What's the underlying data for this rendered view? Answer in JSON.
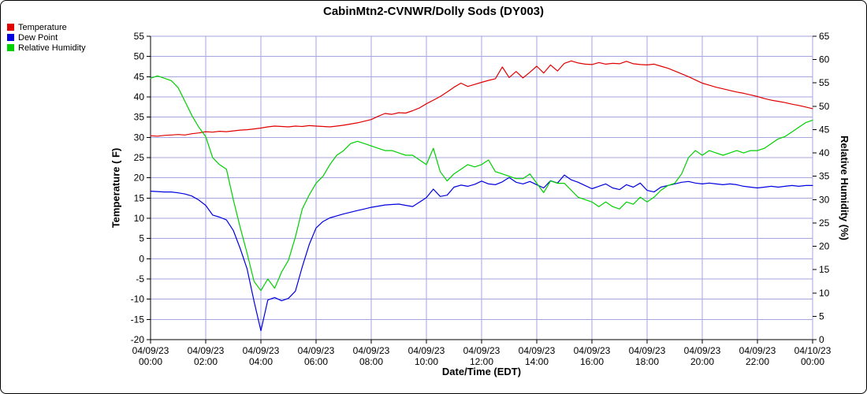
{
  "chart_data": {
    "type": "line",
    "title": "CabinMtn2-CVNWR/Dolly Sods (DY003)",
    "xlabel": "Date/Time (EDT)",
    "grid": true,
    "grid_color": "#a5a5e0",
    "legend_position": "top-left",
    "x_min_hour": 0,
    "x_max_hour": 24,
    "x_step_hours": 0.25,
    "x_ticks": [
      {
        "hour": 0,
        "date": "04/09/23",
        "time": "00:00"
      },
      {
        "hour": 2,
        "date": "04/09/23",
        "time": "02:00"
      },
      {
        "hour": 4,
        "date": "04/09/23",
        "time": "04:00"
      },
      {
        "hour": 6,
        "date": "04/09/23",
        "time": "06:00"
      },
      {
        "hour": 8,
        "date": "04/09/23",
        "time": "08:00"
      },
      {
        "hour": 10,
        "date": "04/09/23",
        "time": "10:00"
      },
      {
        "hour": 12,
        "date": "04/09/23",
        "time": "12:00"
      },
      {
        "hour": 14,
        "date": "04/09/23",
        "time": "14:00"
      },
      {
        "hour": 16,
        "date": "04/09/23",
        "time": "16:00"
      },
      {
        "hour": 18,
        "date": "04/09/23",
        "time": "18:00"
      },
      {
        "hour": 20,
        "date": "04/09/23",
        "time": "20:00"
      },
      {
        "hour": 22,
        "date": "04/09/23",
        "time": "22:00"
      },
      {
        "hour": 24,
        "date": "04/10/23",
        "time": "00:00"
      }
    ],
    "left_axis": {
      "label": "Temperature ( F)",
      "min": -20,
      "max": 55,
      "ticks": [
        55,
        50,
        45,
        40,
        35,
        30,
        25,
        20,
        15,
        10,
        5,
        0,
        -5,
        -10,
        -15,
        -20
      ]
    },
    "right_axis": {
      "label": "Relative Humidity (%)",
      "min": 0,
      "max": 65,
      "ticks": [
        65,
        60,
        55,
        50,
        45,
        40,
        35,
        30,
        25,
        20,
        15,
        10,
        5,
        0
      ]
    },
    "series": [
      {
        "name": "Temperature",
        "axis": "left",
        "color": "#e00000",
        "values": [
          30.4,
          30.3,
          30.5,
          30.6,
          30.7,
          30.6,
          30.9,
          31.1,
          31.4,
          31.3,
          31.5,
          31.4,
          31.6,
          31.8,
          31.9,
          32.1,
          32.3,
          32.6,
          32.8,
          32.7,
          32.6,
          32.8,
          32.7,
          32.9,
          32.8,
          32.7,
          32.6,
          32.8,
          33.0,
          33.3,
          33.6,
          34.0,
          34.4,
          35.2,
          35.9,
          35.7,
          36.1,
          36.0,
          36.6,
          37.3,
          38.3,
          39.2,
          40.1,
          41.2,
          42.4,
          43.4,
          42.6,
          43.1,
          43.6,
          44.1,
          44.5,
          47.4,
          44.8,
          46.3,
          44.7,
          46.1,
          47.6,
          45.9,
          47.9,
          46.4,
          48.3,
          48.9,
          48.4,
          48.1,
          48.0,
          48.5,
          48.1,
          48.3,
          48.2,
          48.8,
          48.2,
          48.0,
          47.9,
          48.1,
          47.6,
          47.1,
          46.4,
          45.7,
          45.0,
          44.2,
          43.4,
          42.9,
          42.4,
          42.0,
          41.6,
          41.2,
          40.9,
          40.5,
          40.1,
          39.6,
          39.2,
          38.9,
          38.6,
          38.2,
          37.9,
          37.5,
          37.1
        ]
      },
      {
        "name": "Dew Point",
        "axis": "left",
        "color": "#0000e0",
        "values": [
          16.7,
          16.6,
          16.5,
          16.5,
          16.3,
          16.0,
          15.5,
          14.5,
          13.2,
          10.8,
          10.3,
          9.6,
          7.0,
          2.5,
          -2.5,
          -10.5,
          -17.8,
          -10.2,
          -9.6,
          -10.4,
          -9.8,
          -8.0,
          -2.0,
          3.5,
          7.6,
          9.2,
          10.1,
          10.6,
          11.1,
          11.5,
          11.9,
          12.3,
          12.7,
          13.0,
          13.3,
          13.4,
          13.5,
          13.2,
          12.9,
          14.0,
          15.1,
          17.2,
          15.4,
          15.7,
          17.7,
          18.2,
          17.9,
          18.4,
          19.2,
          18.5,
          18.3,
          19.0,
          20.1,
          18.9,
          18.5,
          19.1,
          18.3,
          17.5,
          19.3,
          18.7,
          20.7,
          19.5,
          18.9,
          18.1,
          17.3,
          17.9,
          18.5,
          17.5,
          17.1,
          18.3,
          17.7,
          18.7,
          16.9,
          16.5,
          17.7,
          18.1,
          18.5,
          18.9,
          19.1,
          18.7,
          18.5,
          18.7,
          18.5,
          18.3,
          18.5,
          18.3,
          17.9,
          17.7,
          17.5,
          17.7,
          17.9,
          17.7,
          17.9,
          18.1,
          17.9,
          18.1,
          18.1
        ]
      },
      {
        "name": "Relative Humidity",
        "axis": "right",
        "color": "#00d000",
        "values": [
          56.0,
          56.5,
          56.0,
          55.5,
          54.0,
          51.0,
          48.0,
          45.5,
          43.5,
          39.0,
          37.5,
          36.5,
          30.0,
          24.0,
          18.5,
          12.5,
          10.5,
          13.0,
          11.0,
          14.5,
          17.0,
          22.0,
          28.0,
          31.0,
          33.5,
          35.0,
          37.5,
          39.5,
          40.5,
          42.0,
          42.5,
          42.0,
          41.5,
          41.0,
          40.5,
          40.5,
          40.0,
          39.5,
          39.5,
          38.5,
          37.5,
          41.0,
          36.0,
          34.0,
          35.5,
          36.5,
          37.5,
          37.0,
          37.5,
          38.5,
          36.0,
          35.5,
          35.0,
          34.5,
          34.5,
          35.5,
          33.5,
          31.5,
          34.0,
          33.5,
          33.5,
          32.0,
          30.5,
          30.0,
          29.5,
          28.5,
          29.5,
          28.5,
          28.0,
          29.5,
          29.0,
          30.5,
          29.5,
          30.5,
          32.0,
          33.0,
          33.5,
          35.5,
          39.0,
          40.5,
          39.5,
          40.5,
          40.0,
          39.5,
          40.0,
          40.5,
          40.0,
          40.5,
          40.5,
          41.0,
          42.0,
          43.0,
          43.5,
          44.5,
          45.5,
          46.5,
          47.0
        ]
      }
    ]
  }
}
